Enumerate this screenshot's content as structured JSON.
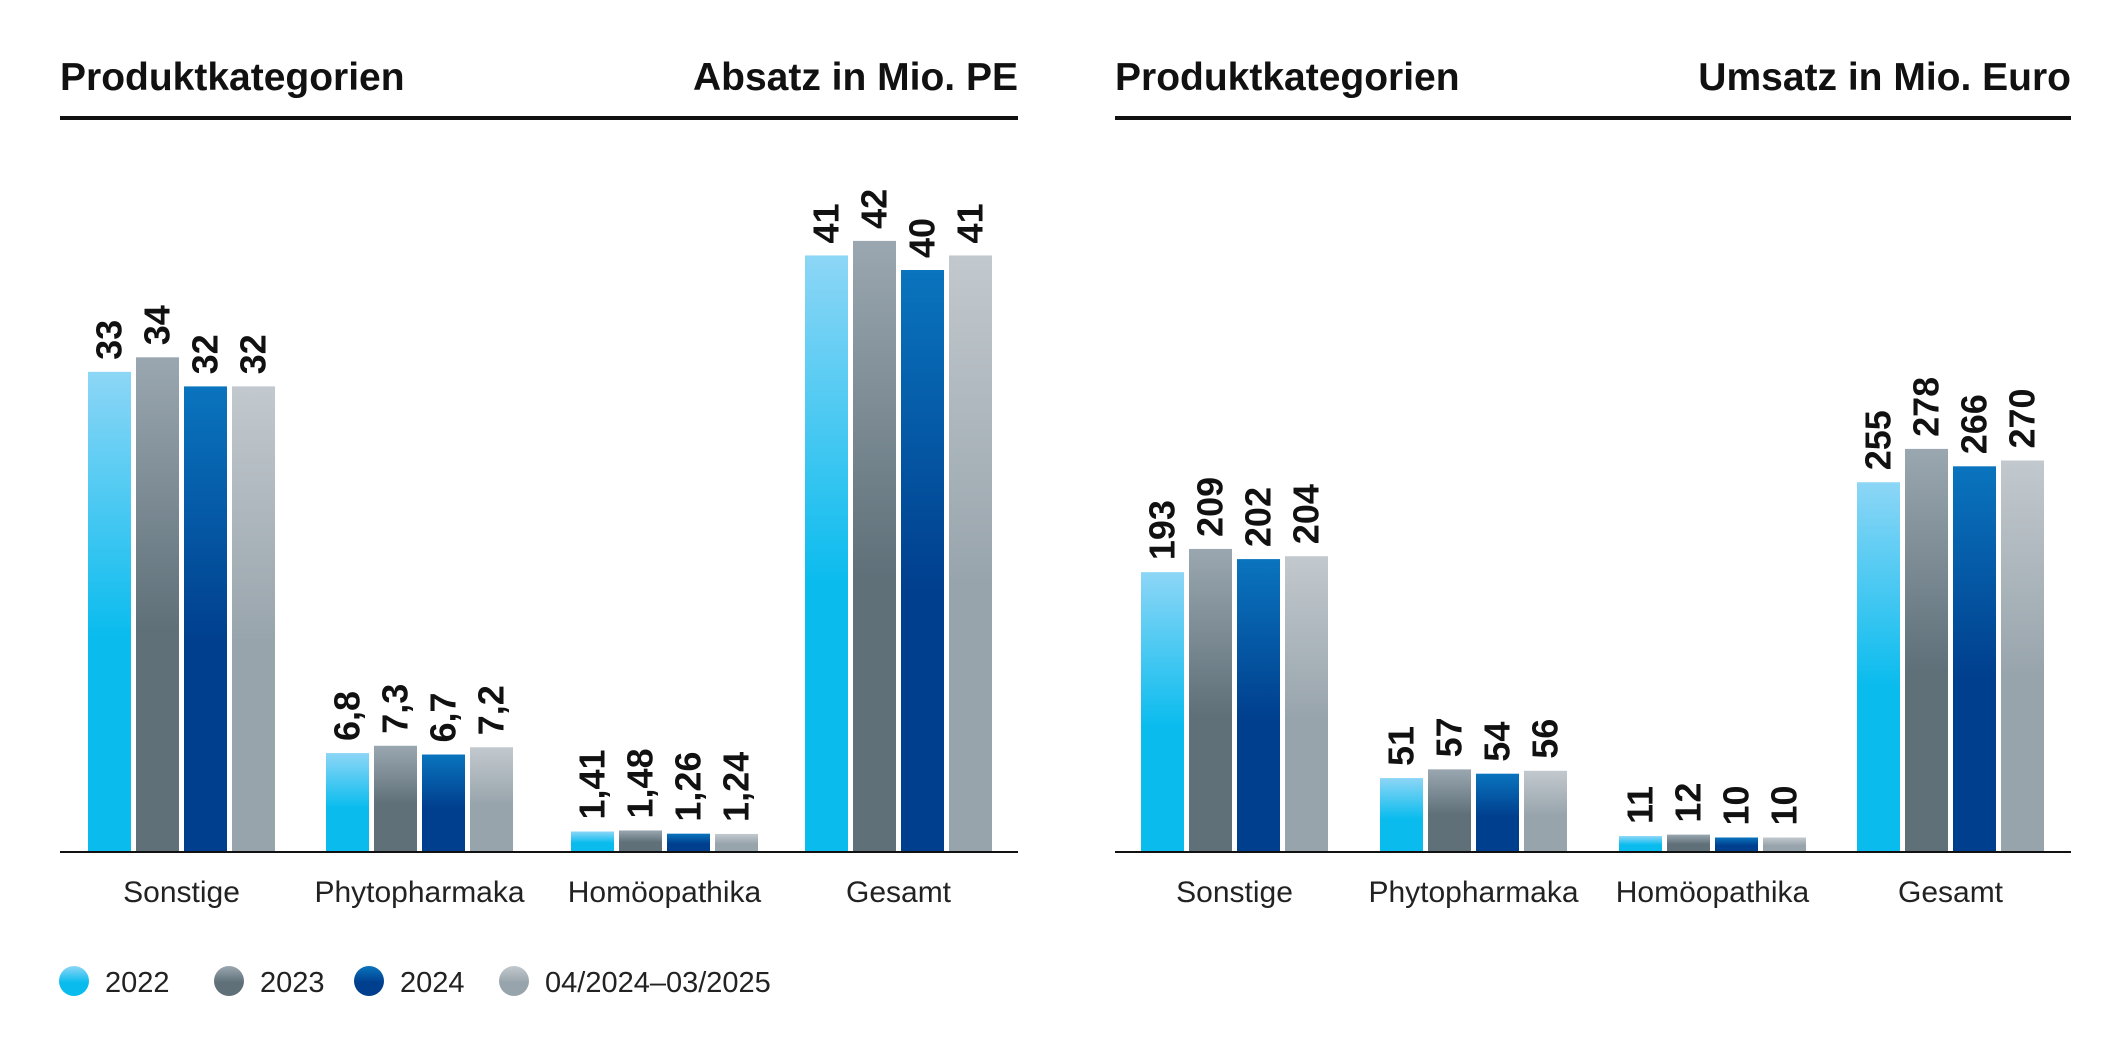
{
  "legend": [
    {
      "label": "2022",
      "top": "#8dd6f6",
      "bottom": "#0abcee"
    },
    {
      "label": "2023",
      "top": "#9aa7b0",
      "bottom": "#5f7079"
    },
    {
      "label": "2024",
      "top": "#0a74be",
      "bottom": "#003f8e"
    },
    {
      "label": "04/2024–03/2025",
      "top": "#c2c9ce",
      "bottom": "#98a4ac"
    }
  ],
  "chart_data": [
    {
      "type": "bar",
      "title_left": "Produktkategorien",
      "title_right": "Absatz in Mio. PE",
      "categories": [
        "Sonstige",
        "Phytopharmaka",
        "Homöopathika",
        "Gesamt"
      ],
      "ylim": [
        0,
        50
      ],
      "grid": false,
      "legend_position": "bottom-left",
      "series": [
        {
          "name": "2022",
          "values": [
            33,
            6.8,
            1.41,
            41
          ],
          "labels": [
            "33",
            "6,8",
            "1,41",
            "41"
          ]
        },
        {
          "name": "2023",
          "values": [
            34,
            7.3,
            1.48,
            42
          ],
          "labels": [
            "34",
            "7,3",
            "1,48",
            "42"
          ]
        },
        {
          "name": "2024",
          "values": [
            32,
            6.7,
            1.26,
            40
          ],
          "labels": [
            "32",
            "6,7",
            "1,26",
            "40"
          ]
        },
        {
          "name": "04/2024–03/2025",
          "values": [
            32,
            7.2,
            1.24,
            41
          ],
          "labels": [
            "32",
            "7,2",
            "1,24",
            "41"
          ]
        }
      ]
    },
    {
      "type": "bar",
      "title_left": "Produktkategorien",
      "title_right": "Umsatz in Mio. Euro",
      "categories": [
        "Sonstige",
        "Phytopharmaka",
        "Homöopathika",
        "Gesamt"
      ],
      "ylim": [
        0,
        330
      ],
      "grid": false,
      "legend_position": "bottom-left",
      "series": [
        {
          "name": "2022",
          "values": [
            193,
            51,
            11,
            255
          ],
          "labels": [
            "193",
            "51",
            "11",
            "255"
          ]
        },
        {
          "name": "2023",
          "values": [
            209,
            57,
            12,
            278
          ],
          "labels": [
            "209",
            "57",
            "12",
            "278"
          ]
        },
        {
          "name": "2024",
          "values": [
            202,
            54,
            10,
            266
          ],
          "labels": [
            "202",
            "54",
            "10",
            "266"
          ]
        },
        {
          "name": "04/2024–03/2025",
          "values": [
            204,
            56,
            10,
            270
          ],
          "labels": [
            "204",
            "56",
            "10",
            "270"
          ]
        }
      ]
    }
  ]
}
